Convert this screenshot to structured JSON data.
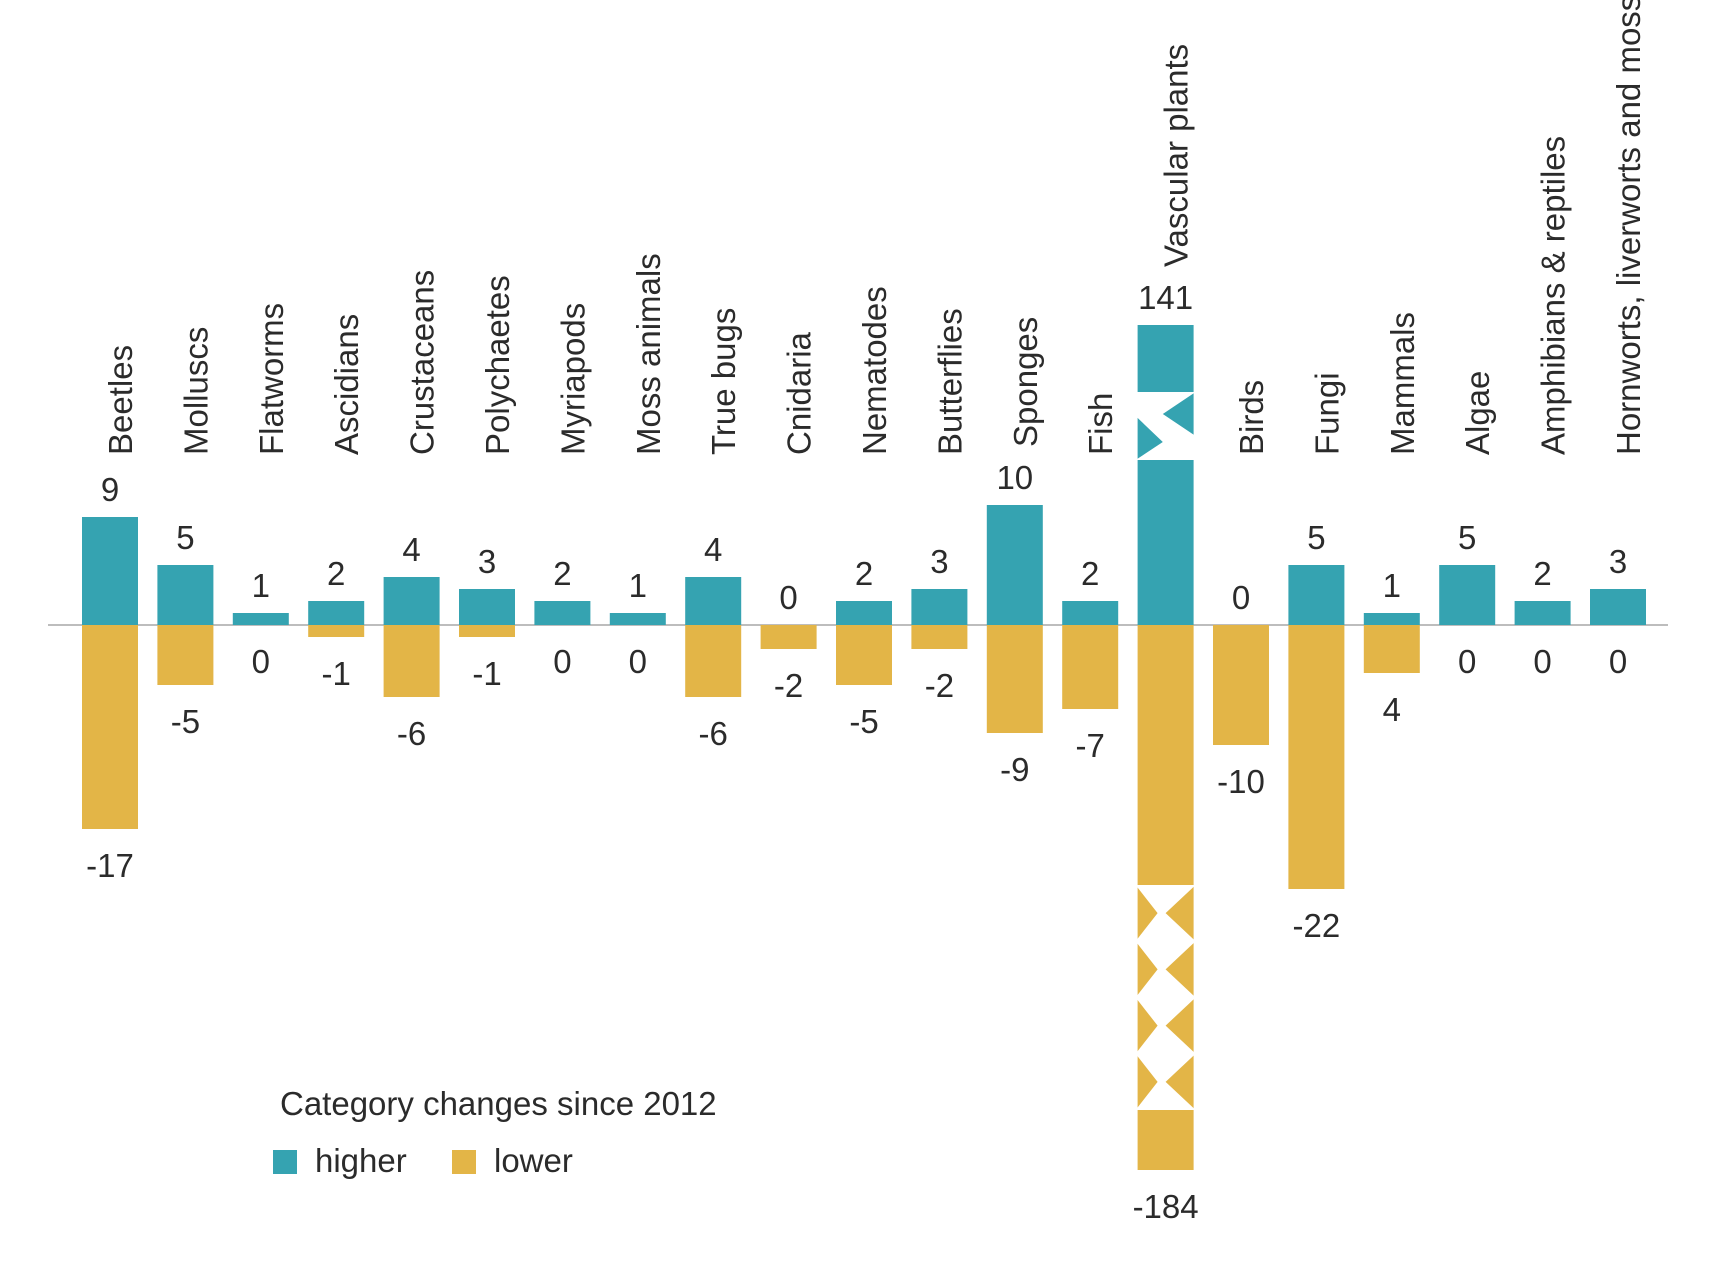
{
  "chart_data": {
    "type": "bar",
    "title": "",
    "xlabel": "",
    "ylabel": "",
    "categories": [
      "Beetles",
      "Molluscs",
      "Flatworms",
      "Ascidians",
      "Crustaceans",
      "Polychaetes",
      "Myriapods",
      "Moss animals",
      "True bugs",
      "Cnidaria",
      "Nematodes",
      "Butterflies",
      "Sponges",
      "Fish",
      "Vascular plants",
      "Birds",
      "Fungi",
      "Mammals",
      "Algae",
      "Amphibians & reptiles",
      "Hornworts, liverworts and mosses"
    ],
    "series": [
      {
        "name": "higher",
        "values": [
          9,
          5,
          1,
          2,
          4,
          3,
          2,
          1,
          4,
          0,
          2,
          3,
          10,
          2,
          141,
          0,
          5,
          1,
          5,
          2,
          3
        ]
      },
      {
        "name": "lower",
        "values": [
          -17,
          -5,
          0,
          -1,
          -6,
          -1,
          0,
          0,
          -6,
          -2,
          -5,
          -2,
          -9,
          -7,
          -184,
          -10,
          -22,
          4,
          0,
          0,
          0
        ]
      }
    ],
    "axis_break_category": "Vascular plants",
    "grid": false,
    "legend": {
      "title": "Category changes since 2012",
      "placement": "bottom-left",
      "items": [
        "higher",
        "lower"
      ]
    },
    "colors": {
      "higher": "#35a3b1",
      "lower": "#e3b547",
      "baseline": "#bdbdbd",
      "text": "#2b2b2b"
    }
  }
}
